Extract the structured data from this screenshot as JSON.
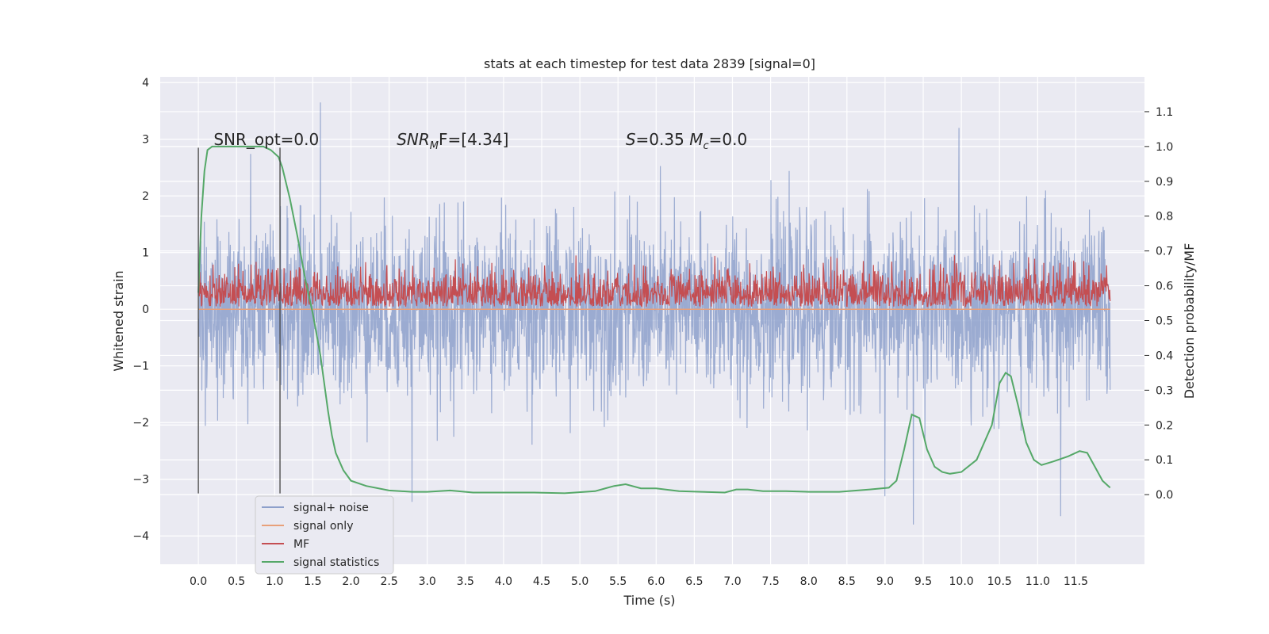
{
  "chart_data": {
    "type": "line",
    "title": "stats at each timestep for test data 2839 [signal=0]",
    "xlabel": "Time (s)",
    "ylabel_left": "Whitened strain",
    "ylabel_right": "Detection probability/MF",
    "xlim": [
      -0.5,
      12.4
    ],
    "ylim_left": [
      -4.5,
      4.1
    ],
    "ylim_right": [
      -0.2,
      1.2
    ],
    "x_ticks": [
      0.0,
      0.5,
      1.0,
      1.5,
      2.0,
      2.5,
      3.0,
      3.5,
      4.0,
      4.5,
      5.0,
      5.5,
      6.0,
      6.5,
      7.0,
      7.5,
      8.0,
      8.5,
      9.0,
      9.5,
      10.0,
      10.5,
      11.0,
      11.5
    ],
    "x_tick_labels": [
      "0.0",
      "0.5",
      "1.0",
      "1.5",
      "2.0",
      "2.5",
      "3.0",
      "3.5",
      "4.0",
      "4.5",
      "5.0",
      "5.5",
      "6.0",
      "6.5",
      "7.0",
      "7.5",
      "8.0",
      "8.5",
      "9.0",
      "9.5",
      "10.0",
      "10.5",
      "11.0",
      "11.5"
    ],
    "y_left_ticks": [
      -4,
      -3,
      -2,
      -1,
      0,
      1,
      2,
      3,
      4
    ],
    "y_left_tick_labels": [
      "−4",
      "−3",
      "−2",
      "−1",
      "0",
      "1",
      "2",
      "3",
      "4"
    ],
    "y_right_ticks": [
      0.0,
      0.1,
      0.2,
      0.3,
      0.4,
      0.5,
      0.6,
      0.7,
      0.8,
      0.9,
      1.0,
      1.1
    ],
    "y_right_tick_labels": [
      "0.0",
      "0.1",
      "0.2",
      "0.3",
      "0.4",
      "0.5",
      "0.6",
      "0.7",
      "0.8",
      "0.9",
      "1.0",
      "1.1"
    ],
    "grid": true,
    "legend_position": "bottom-left",
    "annotations": [
      {
        "text": "SNR_opt=0.0",
        "x": 0.2,
        "y": 2.9
      },
      {
        "text": "SNR_MF=[4.34]",
        "main": "SNR",
        "sub": "M",
        "rest": "F=[4.34]",
        "x": 2.6,
        "y": 2.9
      },
      {
        "text": "S=0.35  M_c=0.0",
        "x": 5.6,
        "y": 2.9
      }
    ],
    "vlines": [
      {
        "x": 0.0,
        "ymin": -3.25,
        "ymax": 2.85
      },
      {
        "x": 1.07,
        "ymin": -3.25,
        "ymax": 2.85
      }
    ],
    "series": [
      {
        "name": "signal+ noise",
        "axis": "left",
        "color": "#8da0cb",
        "kind": "noise",
        "x_range": [
          0.0,
          11.95
        ],
        "sigma": 0.9,
        "peaks": [
          [
            1.6,
            3.65
          ],
          [
            9.37,
            -3.8
          ],
          [
            11.3,
            -3.65
          ],
          [
            2.8,
            -3.4
          ],
          [
            9.0,
            -3.3
          ]
        ]
      },
      {
        "name": "signal only",
        "axis": "left",
        "color": "#e8a07a",
        "x": [
          0.0,
          11.95
        ],
        "y": [
          0.0,
          0.0
        ]
      },
      {
        "name": "MF",
        "axis": "right",
        "color": "#c44e52",
        "kind": "noise-positive",
        "x_range": [
          0.0,
          11.95
        ],
        "baseline": 0.54,
        "peak_max": 0.69
      },
      {
        "name": "signal statistics",
        "axis": "right",
        "color": "#55a868",
        "x": [
          0.0,
          0.04,
          0.08,
          0.12,
          0.18,
          0.25,
          0.35,
          0.5,
          0.7,
          0.85,
          0.95,
          1.05,
          1.1,
          1.2,
          1.3,
          1.4,
          1.5,
          1.6,
          1.65,
          1.7,
          1.75,
          1.8,
          1.9,
          2.0,
          2.2,
          2.5,
          2.8,
          3.0,
          3.3,
          3.6,
          4.0,
          4.4,
          4.8,
          5.2,
          5.45,
          5.6,
          5.8,
          6.0,
          6.3,
          6.6,
          6.9,
          7.05,
          7.2,
          7.4,
          7.7,
          8.0,
          8.4,
          8.8,
          9.05,
          9.15,
          9.25,
          9.35,
          9.45,
          9.55,
          9.65,
          9.75,
          9.85,
          10.0,
          10.2,
          10.4,
          10.5,
          10.58,
          10.65,
          10.75,
          10.85,
          10.95,
          11.05,
          11.2,
          11.4,
          11.55,
          11.65,
          11.75,
          11.85,
          11.95
        ],
        "y": [
          0.58,
          0.8,
          0.93,
          0.99,
          1.0,
          1.0,
          1.0,
          1.0,
          1.0,
          1.0,
          0.99,
          0.97,
          0.94,
          0.85,
          0.74,
          0.62,
          0.52,
          0.4,
          0.32,
          0.24,
          0.17,
          0.12,
          0.07,
          0.04,
          0.025,
          0.012,
          0.008,
          0.008,
          0.012,
          0.006,
          0.006,
          0.006,
          0.004,
          0.01,
          0.025,
          0.03,
          0.018,
          0.018,
          0.01,
          0.008,
          0.006,
          0.015,
          0.015,
          0.01,
          0.01,
          0.008,
          0.008,
          0.015,
          0.02,
          0.04,
          0.13,
          0.23,
          0.22,
          0.13,
          0.08,
          0.065,
          0.06,
          0.065,
          0.1,
          0.2,
          0.32,
          0.35,
          0.34,
          0.25,
          0.15,
          0.1,
          0.085,
          0.095,
          0.11,
          0.125,
          0.12,
          0.08,
          0.04,
          0.02
        ]
      }
    ]
  }
}
